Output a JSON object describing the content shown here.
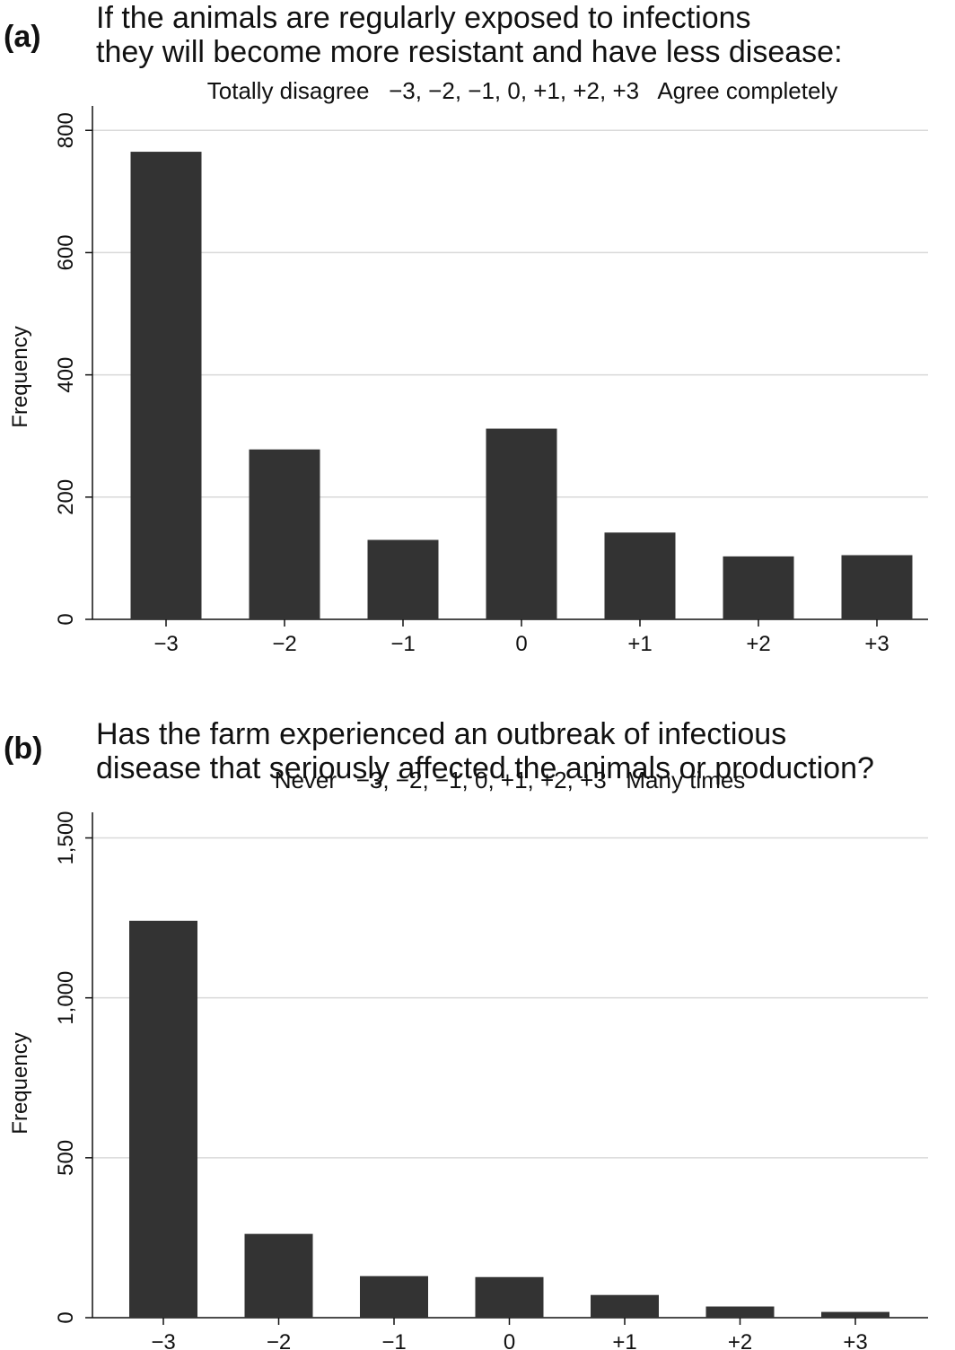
{
  "chart_data": [
    {
      "type": "bar",
      "panel": "(a)",
      "title_lines": [
        "If the animals are regularly exposed to infections",
        "they will become more resistant and have less disease:"
      ],
      "subtitle": "Totally disagree   −3, −2, −1, 0, +1, +2, +3   Agree completely",
      "categories": [
        "−3",
        "−2",
        "−1",
        "0",
        "+1",
        "+2",
        "+3"
      ],
      "values": [
        765,
        278,
        130,
        312,
        142,
        103,
        105
      ],
      "ylabel": "Frequency",
      "xlabel": "",
      "ylim": [
        0,
        840
      ],
      "yticks": [
        0,
        200,
        400,
        600,
        800
      ],
      "ytick_labels": [
        "0",
        "200",
        "400",
        "600",
        "800"
      ],
      "grid": true,
      "bar_color": "#333333"
    },
    {
      "type": "bar",
      "panel": "(b)",
      "title_lines": [
        "Has the farm experienced an outbreak of infectious",
        "disease that seriously affected the animals or production?"
      ],
      "subtitle": "Never   −3, −2, −1, 0, +1, +2, +3   Many times",
      "categories": [
        "−3",
        "−2",
        "−1",
        "0",
        "+1",
        "+2",
        "+3"
      ],
      "values": [
        1241,
        262,
        130,
        127,
        71,
        35,
        18
      ],
      "ylabel": "Frequency",
      "xlabel": "",
      "ylim": [
        0,
        1580
      ],
      "yticks": [
        0,
        500,
        1000,
        1500
      ],
      "ytick_labels": [
        "0",
        "500",
        "1,000",
        "1,500"
      ],
      "grid": true,
      "bar_color": "#333333"
    }
  ]
}
